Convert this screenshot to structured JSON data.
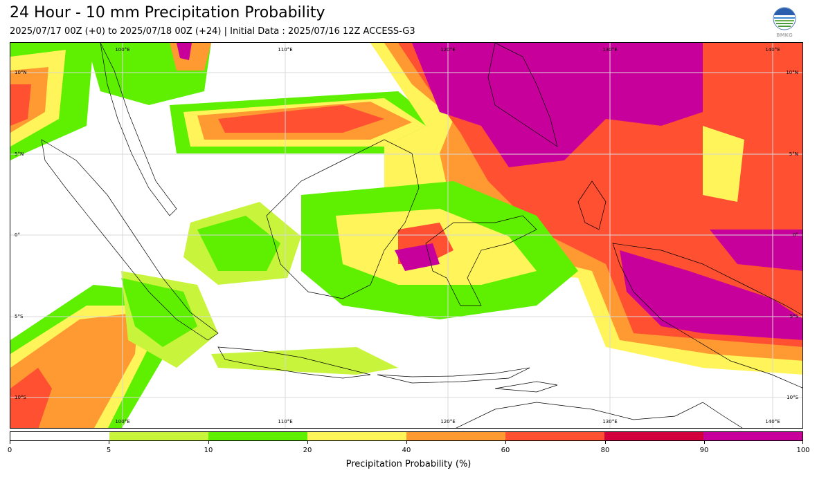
{
  "header": {
    "title": "24 Hour - 10 mm Precipitation Probability",
    "subtitle": "2025/07/17 00Z (+0) to 2025/07/18 00Z (+24) | Initial Data : 2025/07/16 12Z ACCESS-G3",
    "logo_text": "BMKG"
  },
  "map": {
    "lon_labels_top": [
      "100°E",
      "110°E",
      "120°E",
      "130°E",
      "140°E"
    ],
    "lon_labels_bottom": [
      "100°E",
      "110°E",
      "120°E",
      "130°E",
      "140°E"
    ],
    "lat_labels_left": [
      "10°N",
      "5°N",
      "0°",
      "5°S",
      "10°S"
    ],
    "lat_labels_right": [
      "10°N",
      "5°N",
      "0°",
      "5°S",
      "10°S"
    ],
    "palette": {
      "p5": "#c8f53c",
      "p10": "#5ef000",
      "p20": "#fff55a",
      "p40": "#ff9a32",
      "p60": "#ff5032",
      "p80": "#d2003c",
      "p90": "#c8009b"
    }
  },
  "colorbar": {
    "ticks": [
      "0",
      "5",
      "10",
      "20",
      "40",
      "60",
      "80",
      "90",
      "100"
    ],
    "colors": [
      "#ffffff",
      "#c8f53c",
      "#5ef000",
      "#fff55a",
      "#ff9a32",
      "#ff5032",
      "#d2003c",
      "#c8009b"
    ],
    "label": "Precipitation Probability (%)"
  }
}
